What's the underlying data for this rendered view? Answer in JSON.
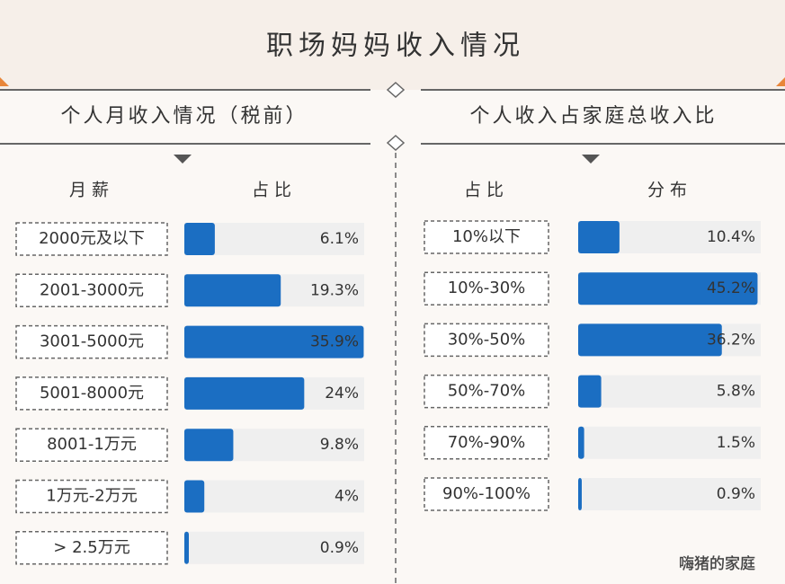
{
  "title": "职场妈妈收入情况",
  "watermark": "嗨猪的家庭",
  "chart_data": [
    {
      "type": "bar",
      "orientation": "horizontal",
      "subtitle": "个人月收入情况（税前）",
      "column_headers": [
        "月薪",
        "占比"
      ],
      "categories": [
        "2000元及以下",
        "2001-3000元",
        "3001-5000元",
        "5001-8000元",
        "8001-1万元",
        "1万元-2万元",
        "> 2.5万元"
      ],
      "values": [
        6.1,
        19.3,
        35.9,
        24,
        9.8,
        4,
        0.9
      ],
      "value_labels": [
        "6.1%",
        "19.3%",
        "35.9%",
        "24%",
        "9.8%",
        "4%",
        "0.9%"
      ],
      "color": "#1b6ec2",
      "xlim": [
        0,
        36
      ]
    },
    {
      "type": "bar",
      "orientation": "horizontal",
      "subtitle": "个人收入占家庭总收入比",
      "column_headers": [
        "占比",
        "分布"
      ],
      "categories": [
        "10%以下",
        "10%-30%",
        "30%-50%",
        "50%-70%",
        "70%-90%",
        "90%-100%"
      ],
      "values": [
        10.4,
        45.2,
        36.2,
        5.8,
        1.5,
        0.9
      ],
      "value_labels": [
        "10.4%",
        "45.2%",
        "36.2%",
        "5.8%",
        "1.5%",
        "0.9%"
      ],
      "color": "#1b6ec2",
      "xlim": [
        0,
        46
      ]
    }
  ]
}
